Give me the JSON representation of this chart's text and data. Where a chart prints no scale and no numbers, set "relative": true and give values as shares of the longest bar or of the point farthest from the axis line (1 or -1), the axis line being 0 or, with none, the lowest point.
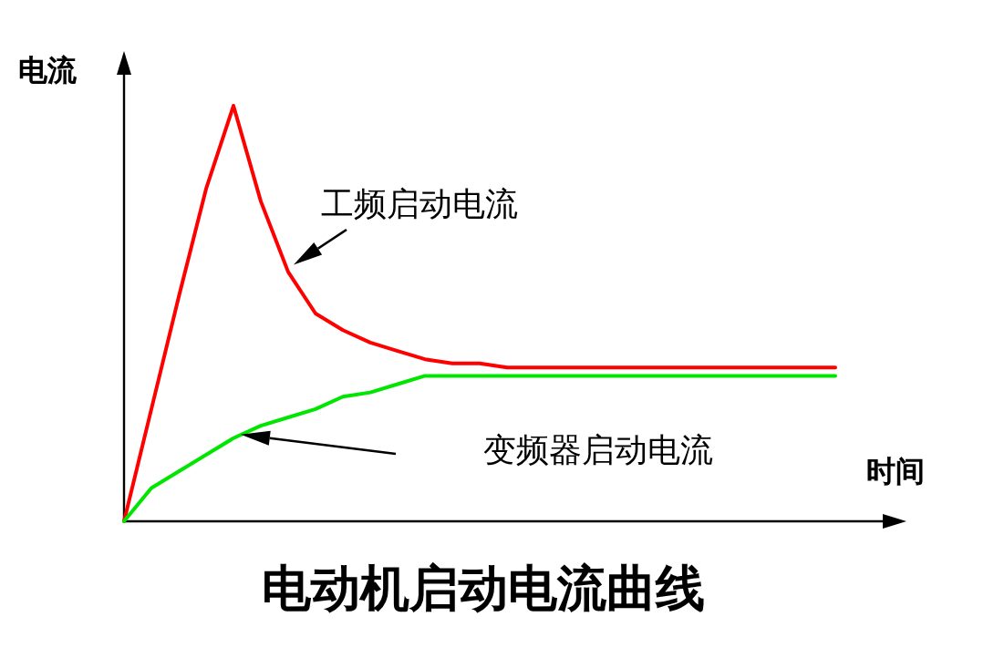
{
  "chart_data": {
    "type": "line",
    "title": "电动机启动电流曲线",
    "xlabel": "时间",
    "ylabel": "电流",
    "relative": true,
    "grid": false,
    "marker": "none",
    "line_style": "solid",
    "categories": [
      null,
      null,
      null,
      null,
      null,
      null,
      null,
      null,
      null,
      null,
      null,
      null,
      null,
      null,
      null,
      null,
      null,
      null,
      null,
      null,
      null,
      null,
      null,
      null,
      null,
      null,
      null
    ],
    "series": [
      {
        "name": "工频启动电流",
        "color": "#ff0000",
        "values": [
          0,
          0.27,
          0.54,
          0.8,
          1,
          0.77,
          0.6,
          0.5,
          0.46,
          0.43,
          0.41,
          0.39,
          0.38,
          0.38,
          0.37,
          0.37,
          0.37,
          0.37,
          0.37,
          0.37,
          0.37,
          0.37,
          0.37,
          0.37,
          0.37,
          0.37,
          0.37
        ]
      },
      {
        "name": "变频器启动电流",
        "color": "#00e600",
        "values": [
          0,
          0.08,
          0.12,
          0.16,
          0.2,
          0.23,
          0.25,
          0.27,
          0.3,
          0.31,
          0.33,
          0.35,
          0.35,
          0.35,
          0.35,
          0.35,
          0.35,
          0.35,
          0.35,
          0.35,
          0.35,
          0.35,
          0.35,
          0.35,
          0.35,
          0.35,
          0.35
        ]
      }
    ]
  }
}
